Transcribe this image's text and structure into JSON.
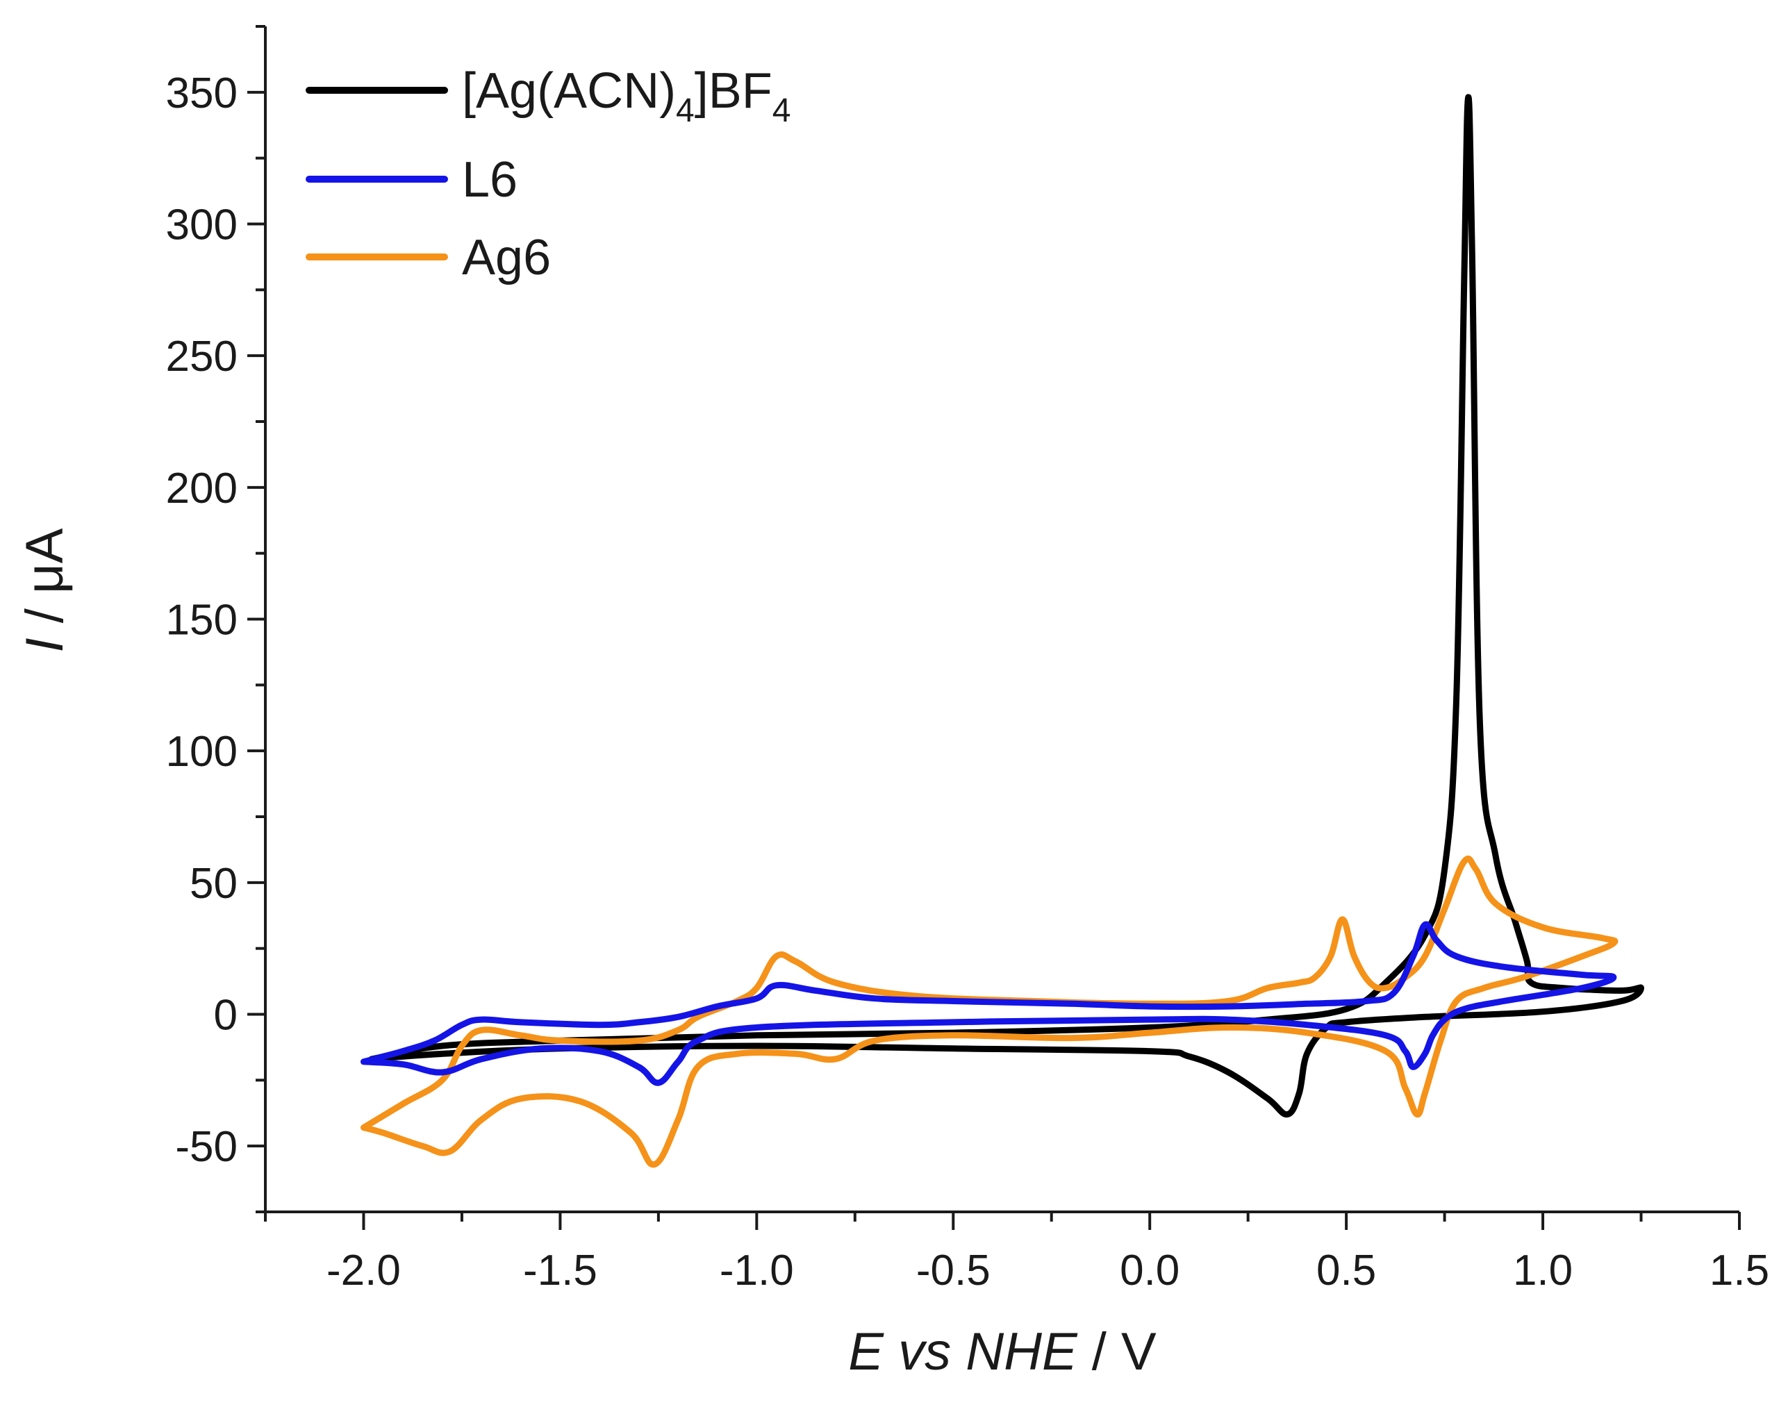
{
  "chart_data": {
    "type": "line",
    "title": "",
    "xlabel": {
      "italic_part": "E vs NHE",
      "plain_part": " / V"
    },
    "ylabel": {
      "italic_part": "I",
      "plain_part": " / μA"
    },
    "xlim": [
      -2.25,
      1.5
    ],
    "ylim": [
      -75,
      375
    ],
    "x_ticks": [
      {
        "value": -2.0,
        "label": "-2.0"
      },
      {
        "value": -1.5,
        "label": "-1.5"
      },
      {
        "value": -1.0,
        "label": "-1.0"
      },
      {
        "value": -0.5,
        "label": "-0.5"
      },
      {
        "value": 0.0,
        "label": "0.0"
      },
      {
        "value": 0.5,
        "label": "0.5"
      },
      {
        "value": 1.0,
        "label": "1.0"
      },
      {
        "value": 1.5,
        "label": "1.5"
      }
    ],
    "y_ticks": [
      {
        "value": -50,
        "label": "-50"
      },
      {
        "value": 0,
        "label": "0"
      },
      {
        "value": 50,
        "label": "50"
      },
      {
        "value": 100,
        "label": "100"
      },
      {
        "value": 150,
        "label": "150"
      },
      {
        "value": 200,
        "label": "200"
      },
      {
        "value": 250,
        "label": "250"
      },
      {
        "value": 300,
        "label": "300"
      },
      {
        "value": 350,
        "label": "350"
      }
    ],
    "grid": false,
    "legend_position": "top-left",
    "series": [
      {
        "name": "[Ag(ACN)4]BF4",
        "legend_main": "[Ag(ACN)",
        "legend_sub1": "4",
        "legend_mid": "]BF",
        "legend_sub2": "4",
        "color": "#000000",
        "points": [
          [
            -1.98,
            -17
          ],
          [
            -1.8,
            -12
          ],
          [
            -1.5,
            -10
          ],
          [
            -1.0,
            -8
          ],
          [
            -0.5,
            -7
          ],
          [
            0.0,
            -5
          ],
          [
            0.3,
            -2
          ],
          [
            0.5,
            2
          ],
          [
            0.6,
            12
          ],
          [
            0.7,
            30
          ],
          [
            0.75,
            55
          ],
          [
            0.78,
            120
          ],
          [
            0.8,
            280
          ],
          [
            0.81,
            348
          ],
          [
            0.82,
            290
          ],
          [
            0.84,
            110
          ],
          [
            0.88,
            60
          ],
          [
            0.93,
            35
          ],
          [
            0.96,
            20
          ],
          [
            0.97,
            12
          ],
          [
            1.05,
            10
          ],
          [
            1.2,
            9
          ],
          [
            1.25,
            10
          ],
          [
            1.2,
            5
          ],
          [
            1.0,
            1
          ],
          [
            0.7,
            -1
          ],
          [
            0.5,
            -3
          ],
          [
            0.45,
            -5
          ],
          [
            0.4,
            -15
          ],
          [
            0.38,
            -30
          ],
          [
            0.35,
            -38
          ],
          [
            0.3,
            -32
          ],
          [
            0.2,
            -22
          ],
          [
            0.1,
            -16
          ],
          [
            0.0,
            -14
          ],
          [
            -0.5,
            -13
          ],
          [
            -1.0,
            -12
          ],
          [
            -1.5,
            -13
          ],
          [
            -1.8,
            -15
          ],
          [
            -1.98,
            -17
          ]
        ]
      },
      {
        "name": "L6",
        "legend_main": "L6",
        "color": "#1414e6",
        "points": [
          [
            -2.0,
            -18
          ],
          [
            -1.9,
            -14
          ],
          [
            -1.82,
            -10
          ],
          [
            -1.75,
            -4
          ],
          [
            -1.7,
            -2
          ],
          [
            -1.6,
            -3
          ],
          [
            -1.4,
            -4
          ],
          [
            -1.3,
            -3
          ],
          [
            -1.2,
            -1
          ],
          [
            -1.1,
            3
          ],
          [
            -1.0,
            6
          ],
          [
            -0.95,
            11
          ],
          [
            -0.85,
            9
          ],
          [
            -0.7,
            6
          ],
          [
            -0.5,
            5
          ],
          [
            -0.2,
            4
          ],
          [
            0.0,
            3
          ],
          [
            0.2,
            3
          ],
          [
            0.4,
            4
          ],
          [
            0.55,
            5
          ],
          [
            0.62,
            8
          ],
          [
            0.67,
            22
          ],
          [
            0.7,
            34
          ],
          [
            0.73,
            28
          ],
          [
            0.78,
            22
          ],
          [
            0.9,
            18
          ],
          [
            1.1,
            15
          ],
          [
            1.18,
            14
          ],
          [
            1.1,
            10
          ],
          [
            0.9,
            5
          ],
          [
            0.8,
            2
          ],
          [
            0.75,
            -2
          ],
          [
            0.72,
            -8
          ],
          [
            0.7,
            -15
          ],
          [
            0.67,
            -20
          ],
          [
            0.65,
            -14
          ],
          [
            0.6,
            -8
          ],
          [
            0.4,
            -4
          ],
          [
            0.2,
            -2
          ],
          [
            0.0,
            -2
          ],
          [
            -0.5,
            -3
          ],
          [
            -1.0,
            -5
          ],
          [
            -1.15,
            -10
          ],
          [
            -1.2,
            -18
          ],
          [
            -1.25,
            -26
          ],
          [
            -1.3,
            -20
          ],
          [
            -1.4,
            -14
          ],
          [
            -1.55,
            -13
          ],
          [
            -1.7,
            -17
          ],
          [
            -1.8,
            -22
          ],
          [
            -1.9,
            -19
          ],
          [
            -2.0,
            -18
          ]
        ]
      },
      {
        "name": "Ag6",
        "legend_main": "Ag6",
        "color": "#f59219",
        "points": [
          [
            -2.0,
            -43
          ],
          [
            -1.9,
            -34
          ],
          [
            -1.8,
            -25
          ],
          [
            -1.75,
            -12
          ],
          [
            -1.7,
            -6
          ],
          [
            -1.6,
            -8
          ],
          [
            -1.5,
            -10
          ],
          [
            -1.3,
            -10
          ],
          [
            -1.2,
            -6
          ],
          [
            -1.15,
            -1
          ],
          [
            -1.05,
            5
          ],
          [
            -1.0,
            10
          ],
          [
            -0.95,
            22
          ],
          [
            -0.9,
            20
          ],
          [
            -0.8,
            12
          ],
          [
            -0.6,
            7
          ],
          [
            -0.3,
            5
          ],
          [
            0.0,
            4
          ],
          [
            0.2,
            5
          ],
          [
            0.3,
            10
          ],
          [
            0.38,
            12
          ],
          [
            0.42,
            14
          ],
          [
            0.46,
            22
          ],
          [
            0.49,
            36
          ],
          [
            0.52,
            22
          ],
          [
            0.56,
            12
          ],
          [
            0.6,
            10
          ],
          [
            0.65,
            14
          ],
          [
            0.7,
            22
          ],
          [
            0.75,
            40
          ],
          [
            0.8,
            58
          ],
          [
            0.83,
            55
          ],
          [
            0.88,
            42
          ],
          [
            1.0,
            33
          ],
          [
            1.15,
            29
          ],
          [
            1.18,
            27
          ],
          [
            1.1,
            22
          ],
          [
            0.95,
            14
          ],
          [
            0.85,
            10
          ],
          [
            0.78,
            5
          ],
          [
            0.74,
            -10
          ],
          [
            0.7,
            -30
          ],
          [
            0.68,
            -38
          ],
          [
            0.65,
            -28
          ],
          [
            0.6,
            -14
          ],
          [
            0.4,
            -7
          ],
          [
            0.2,
            -5
          ],
          [
            0.0,
            -7
          ],
          [
            -0.2,
            -9
          ],
          [
            -0.5,
            -8
          ],
          [
            -0.7,
            -10
          ],
          [
            -0.8,
            -17
          ],
          [
            -0.9,
            -15
          ],
          [
            -1.05,
            -15
          ],
          [
            -1.15,
            -20
          ],
          [
            -1.2,
            -40
          ],
          [
            -1.26,
            -57
          ],
          [
            -1.32,
            -45
          ],
          [
            -1.45,
            -33
          ],
          [
            -1.6,
            -32
          ],
          [
            -1.7,
            -40
          ],
          [
            -1.78,
            -52
          ],
          [
            -1.85,
            -50
          ],
          [
            -1.95,
            -45
          ],
          [
            -2.0,
            -43
          ]
        ]
      }
    ]
  }
}
